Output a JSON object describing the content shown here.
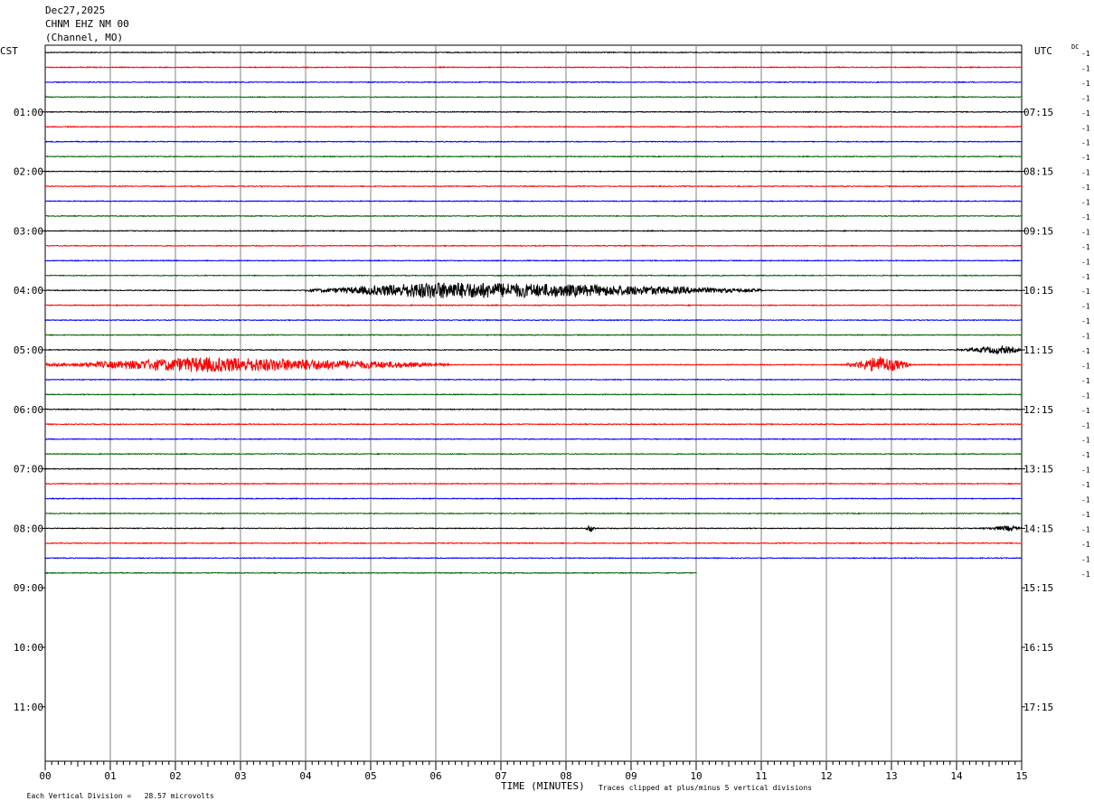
{
  "header": {
    "date": "Dec27,2025",
    "station": "CHNM EHZ NM 00",
    "channel": "(Channel, MO)"
  },
  "left_tz": "CST",
  "right_tz": "UTC",
  "dc_label": "DC",
  "colors": {
    "trace_cycle": [
      "#000000",
      "#ff0000",
      "#0000ff",
      "#006400"
    ],
    "grid": "#808080",
    "axis": "#000000",
    "text": "#000000"
  },
  "chart_data": {
    "type": "line",
    "title": "CHNM EHZ NM 00",
    "xlabel": "TIME (MINUTES)",
    "x_ticks": [
      "00",
      "01",
      "02",
      "03",
      "04",
      "05",
      "06",
      "07",
      "08",
      "09",
      "10",
      "11",
      "12",
      "13",
      "14",
      "15"
    ],
    "xlim": [
      0,
      15
    ],
    "minutes_per_line": 15,
    "lines_per_hour": 4,
    "left_hour_labels": [
      "01:00",
      "02:00",
      "03:00",
      "04:00",
      "05:00",
      "06:00",
      "07:00",
      "08:00",
      "09:00",
      "10:00",
      "11:00"
    ],
    "right_hour_labels": [
      "07:15",
      "08:15",
      "09:15",
      "10:15",
      "11:15",
      "12:15",
      "13:15",
      "14:15",
      "15:15",
      "16:15",
      "17:15"
    ],
    "total_rows": 36,
    "last_row_end_minute": 10,
    "dc_offsets": [
      "-1",
      "-1",
      "-1",
      "-1",
      "-1",
      "-1",
      "-1",
      "-1",
      "-1",
      "-1",
      "-1",
      "-1",
      "-1",
      "-1",
      "-1",
      "-1",
      "-1",
      "-1",
      "-1",
      "-1",
      "-1",
      "-1",
      "-1",
      "-1",
      "-1",
      "-1",
      "-1",
      "-1",
      "-1",
      "-1",
      "-1",
      "-1",
      "-1",
      "-1",
      "-1",
      "-1"
    ],
    "events": [
      {
        "row": 16,
        "start_min": 4.0,
        "peak_min": 6.0,
        "end_min": 11.0,
        "amplitude": 1.0
      },
      {
        "row": 21,
        "start_min": 0.0,
        "peak_min": 2.4,
        "end_min": 6.2,
        "amplitude": 0.9
      },
      {
        "row": 21,
        "start_min": 12.3,
        "peak_min": 12.8,
        "end_min": 13.3,
        "amplitude": 1.0
      },
      {
        "row": 20,
        "start_min": 14.0,
        "peak_min": 14.7,
        "end_min": 15.0,
        "amplitude": 0.45
      },
      {
        "row": 32,
        "start_min": 8.3,
        "peak_min": 8.35,
        "end_min": 8.45,
        "amplitude": 0.5
      },
      {
        "row": 32,
        "start_min": 14.4,
        "peak_min": 14.8,
        "end_min": 15.0,
        "amplitude": 0.3
      }
    ],
    "vertical_division_value": "28.57",
    "vertical_division_unit": "microvolts"
  },
  "footer": {
    "left_note_prefix": "Each Vertical Division =",
    "left_note_value": "28.57 microvolts",
    "clip_note": "Traces clipped at plus/minus 5 vertical divisions"
  }
}
